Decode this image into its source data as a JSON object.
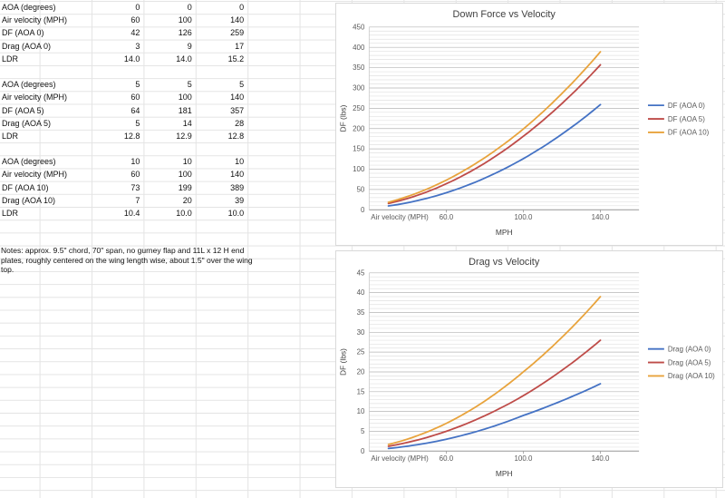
{
  "table": {
    "groups": [
      {
        "rows": [
          {
            "label": "AOA (degrees)",
            "values": [
              "0",
              "0",
              "0"
            ]
          },
          {
            "label": "Air velocity (MPH)",
            "values": [
              "60",
              "100",
              "140"
            ]
          },
          {
            "label": "DF (AOA 0)",
            "values": [
              "42",
              "126",
              "259"
            ]
          },
          {
            "label": "Drag (AOA 0)",
            "values": [
              "3",
              "9",
              "17"
            ]
          },
          {
            "label": "LDR",
            "values": [
              "14.0",
              "14.0",
              "15.2"
            ]
          }
        ]
      },
      {
        "rows": [
          {
            "label": "AOA (degrees)",
            "values": [
              "5",
              "5",
              "5"
            ]
          },
          {
            "label": "Air velocity (MPH)",
            "values": [
              "60",
              "100",
              "140"
            ]
          },
          {
            "label": "DF (AOA 5)",
            "values": [
              "64",
              "181",
              "357"
            ]
          },
          {
            "label": "Drag (AOA 5)",
            "values": [
              "5",
              "14",
              "28"
            ]
          },
          {
            "label": "LDR",
            "values": [
              "12.8",
              "12.9",
              "12.8"
            ]
          }
        ]
      },
      {
        "rows": [
          {
            "label": "AOA (degrees)",
            "values": [
              "10",
              "10",
              "10"
            ]
          },
          {
            "label": "Air velocity (MPH)",
            "values": [
              "60",
              "100",
              "140"
            ]
          },
          {
            "label": "DF (AOA 10)",
            "values": [
              "73",
              "199",
              "389"
            ]
          },
          {
            "label": "Drag (AOA 10)",
            "values": [
              "7",
              "20",
              "39"
            ]
          },
          {
            "label": "LDR",
            "values": [
              "10.4",
              "10.0",
              "10.0"
            ]
          }
        ]
      }
    ],
    "notes": "Notes: approx. 9.5\" chord, 70\" span, no gurney flap and 11L x 12 H end plates, roughly centered on the wing length wise, about 1.5\" over the wing top."
  },
  "chart_data": [
    {
      "type": "line",
      "title": "Down Force vs Velocity",
      "x": [
        60,
        100,
        140
      ],
      "series": [
        {
          "name": "DF (AOA 0)",
          "color": "#4472C4",
          "values": [
            42,
            126,
            259
          ]
        },
        {
          "name": "DF (AOA 5)",
          "color": "#BE4B48",
          "values": [
            64,
            181,
            357
          ]
        },
        {
          "name": "DF (AOA 10)",
          "color": "#E8A33C",
          "values": [
            73,
            199,
            389
          ]
        }
      ],
      "xlabel": "MPH",
      "ylabel": "DF (lbs)",
      "axis_note": "Air velocity (MPH)",
      "xlim": [
        20,
        160
      ],
      "ylim": [
        0,
        450
      ],
      "ytick_step": 50,
      "yminor_step": 10,
      "xticks": [
        60,
        100,
        140
      ],
      "xtick_labels": [
        "60.0",
        "100.0",
        "140.0"
      ],
      "legend_position": "right",
      "grid": "minor-horizontal"
    },
    {
      "type": "line",
      "title": "Drag vs Velocity",
      "x": [
        60,
        100,
        140
      ],
      "series": [
        {
          "name": "Drag (AOA 0)",
          "color": "#4472C4",
          "values": [
            3,
            9,
            17
          ]
        },
        {
          "name": "Drag (AOA 5)",
          "color": "#BE4B48",
          "values": [
            5,
            14,
            28
          ]
        },
        {
          "name": "Drag (AOA 10)",
          "color": "#E8A33C",
          "values": [
            7,
            20,
            39
          ]
        }
      ],
      "xlabel": "MPH",
      "ylabel": "DF (lbs)",
      "axis_note": "Air velocity (MPH)",
      "xlim": [
        20,
        160
      ],
      "ylim": [
        0,
        45
      ],
      "ytick_step": 5,
      "yminor_step": 1,
      "xticks": [
        60,
        100,
        140
      ],
      "xtick_labels": [
        "60.0",
        "100.0",
        "140.0"
      ],
      "legend_position": "right",
      "grid": "minor-horizontal"
    }
  ]
}
